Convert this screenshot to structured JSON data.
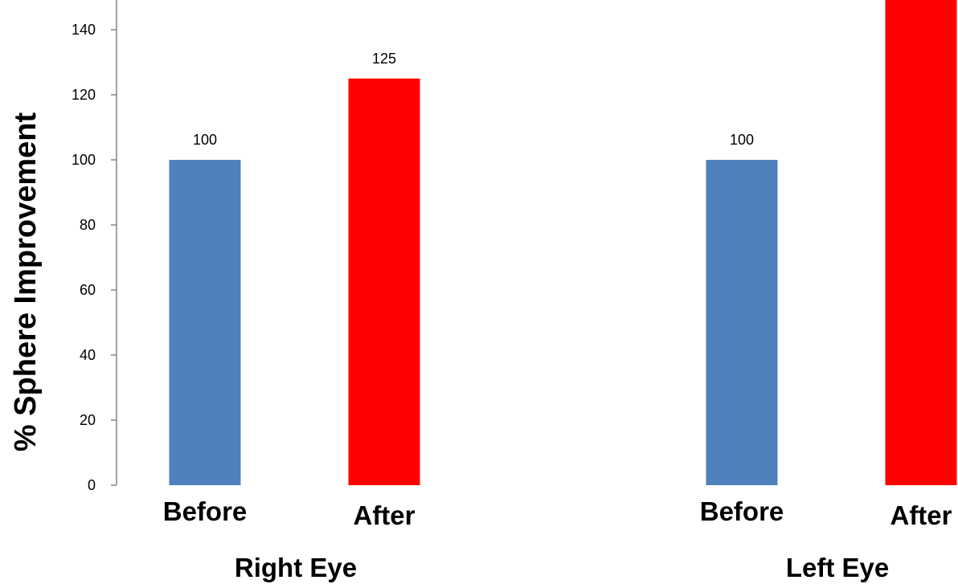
{
  "chart_data": {
    "type": "bar",
    "title": "",
    "xlabel": "",
    "ylabel": "% Sphere Improvement",
    "ylim": [
      0,
      140
    ],
    "yticks": [
      0,
      20,
      40,
      60,
      80,
      100,
      120,
      140
    ],
    "grid": false,
    "groups": [
      {
        "name": "Right Eye",
        "bars": [
          {
            "category": "Before",
            "value": 100,
            "label": "100",
            "color": "#4f81bd"
          },
          {
            "category": "After",
            "value": 125,
            "label": "125",
            "color": "#ff0000"
          }
        ]
      },
      {
        "name": "Left Eye",
        "bars": [
          {
            "category": "Before",
            "value": 100,
            "label": "100",
            "color": "#4f81bd"
          },
          {
            "category": "After",
            "value": 150,
            "label": "",
            "color": "#ff0000"
          }
        ]
      }
    ]
  }
}
